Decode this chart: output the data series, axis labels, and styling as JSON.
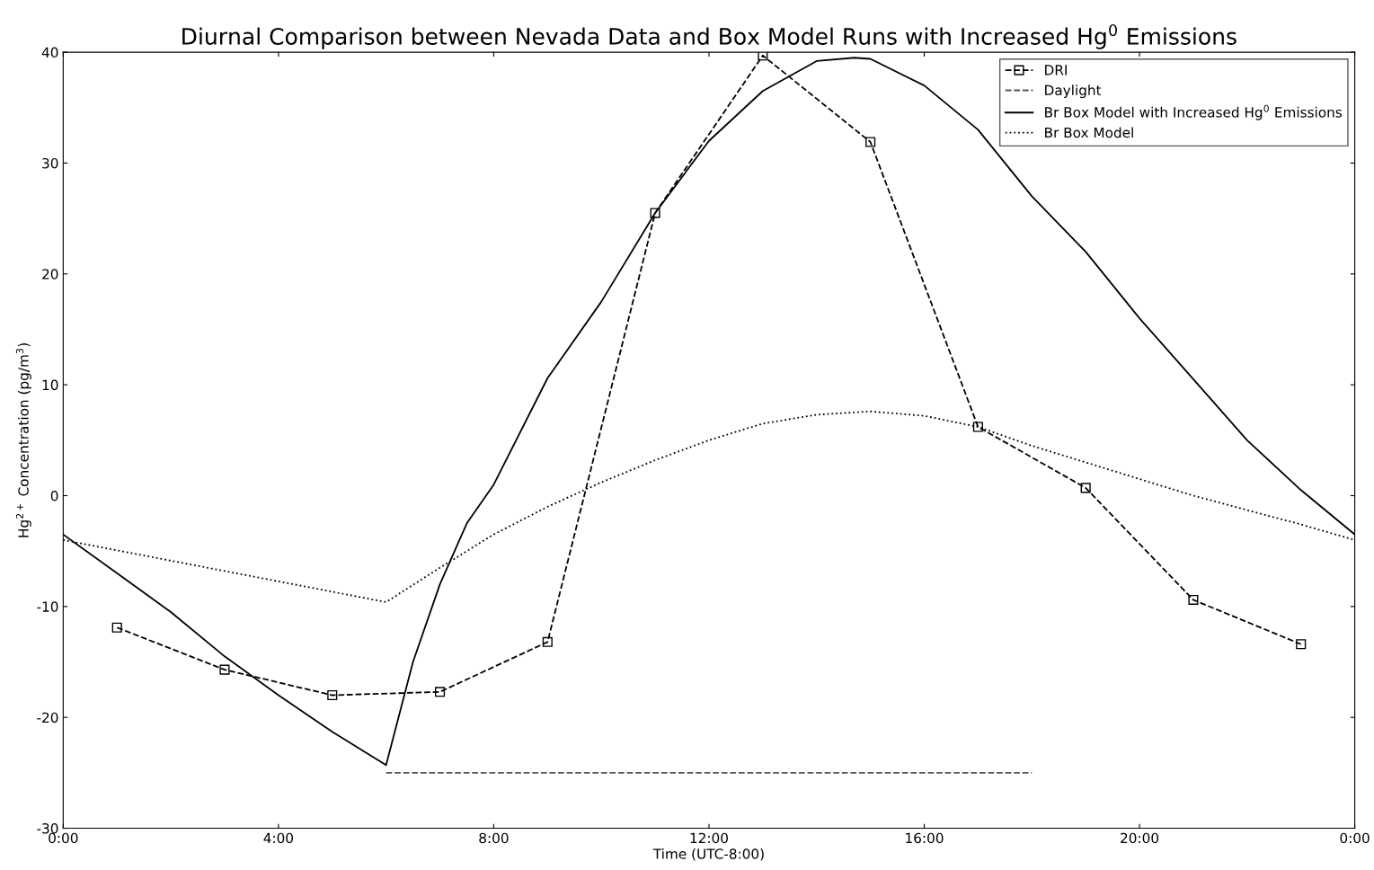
{
  "chart_data": {
    "type": "line",
    "title": "Diurnal Comparison between Nevada Data and Box Model Runs with Increased Hg$^{0}$ Emissions",
    "xlabel": "Time (UTC-8:00)",
    "ylabel": "Hg$^{2+}$ Concentration (pg/m$^{3}$)",
    "xlim": [
      0,
      24
    ],
    "xticks": [
      {
        "value": 0,
        "label": "0:00"
      },
      {
        "value": 4,
        "label": "4:00"
      },
      {
        "value": 8,
        "label": "8:00"
      },
      {
        "value": 12,
        "label": "12:00"
      },
      {
        "value": 16,
        "label": "16:00"
      },
      {
        "value": 20,
        "label": "20:00"
      },
      {
        "value": 24,
        "label": "0:00"
      }
    ],
    "ylim": [
      -30,
      40
    ],
    "yticks": [
      -30,
      -20,
      -10,
      0,
      10,
      20,
      30,
      40
    ],
    "grid": false,
    "legend": "top right",
    "series": [
      {
        "name": "DRI",
        "color": "#000000",
        "line_style": "dashed",
        "marker": "square",
        "x": [
          1,
          3,
          5,
          7,
          9,
          11,
          13,
          15,
          17,
          19,
          21,
          23
        ],
        "values": [
          -11.9,
          -15.7,
          -18.0,
          -17.7,
          -13.2,
          25.5,
          39.7,
          31.9,
          6.2,
          0.7,
          -9.4,
          -13.4
        ]
      },
      {
        "name": "Daylight",
        "color": "#555555",
        "line_style": "dashed",
        "marker": "none",
        "x": [
          6,
          18
        ],
        "values": [
          -25,
          -25
        ]
      },
      {
        "name": "Br Box Model with Increased Hg$^{0}$ Emissions",
        "color": "#000000",
        "line_style": "solid",
        "marker": "none",
        "x": [
          0,
          1,
          2,
          3,
          4,
          5,
          6,
          6.5,
          7,
          7.5,
          8,
          9,
          10,
          11,
          12,
          13,
          14,
          14.7,
          15,
          16,
          17,
          18,
          19,
          20,
          21,
          22,
          23,
          24
        ],
        "values": [
          -3.5,
          -7,
          -10.5,
          -14.5,
          -18,
          -21.3,
          -24.3,
          -15,
          -8,
          -2.5,
          1,
          10.6,
          17.5,
          25.5,
          32,
          36.5,
          39.2,
          39.5,
          39.4,
          37,
          33,
          27,
          22,
          16,
          10.5,
          5,
          0.5,
          -3.5
        ]
      },
      {
        "name": "Br Box Model",
        "color": "#000000",
        "line_style": "dotted",
        "marker": "none",
        "x": [
          0,
          3,
          6,
          7,
          8,
          9,
          10,
          11,
          12,
          13,
          14,
          15,
          16,
          17,
          18,
          19,
          20,
          21,
          22,
          23,
          24
        ],
        "values": [
          -4,
          -6.8,
          -9.6,
          -6.5,
          -3.5,
          -1,
          1.2,
          3.2,
          5,
          6.5,
          7.3,
          7.6,
          7.2,
          6.2,
          4.5,
          3,
          1.5,
          0,
          -1.3,
          -2.6,
          -4
        ]
      }
    ]
  }
}
